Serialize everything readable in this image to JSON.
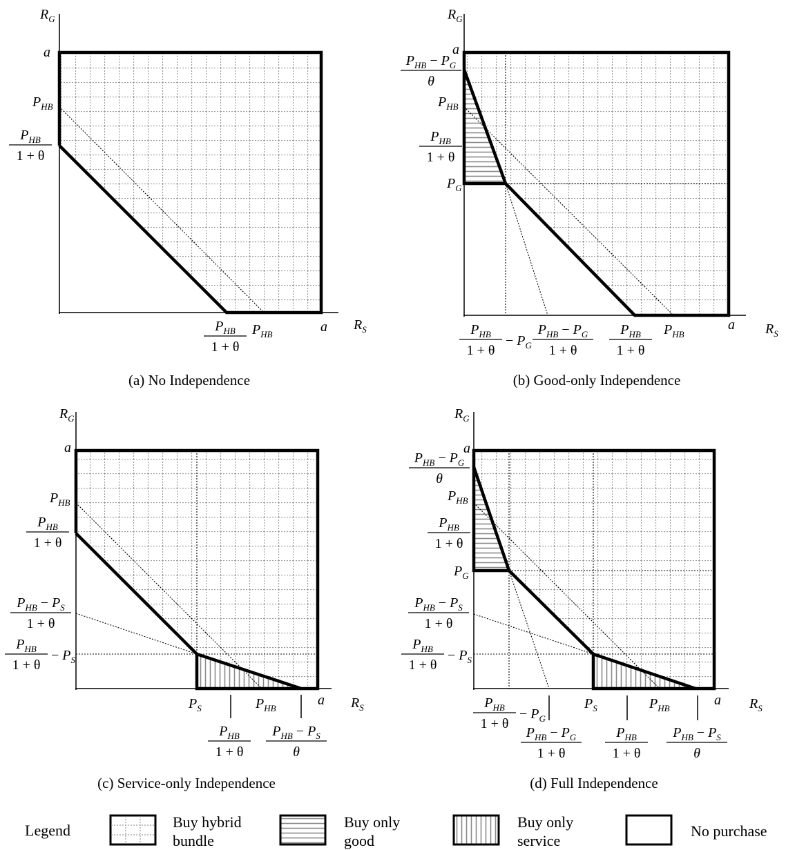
{
  "panels": [
    {
      "caption": "(a) No Independence",
      "axes": {
        "y": "R",
        "y_sub": "G",
        "x": "R",
        "x_sub": "S"
      },
      "labels": {
        "a": "a"
      }
    },
    {
      "caption": "(b) Good-only Independence",
      "axes": {
        "y": "R",
        "y_sub": "G",
        "x": "R",
        "x_sub": "S"
      },
      "labels": {
        "a": "a"
      }
    },
    {
      "caption": "(c) Service-only Independence",
      "axes": {
        "y": "R",
        "y_sub": "G",
        "x": "R",
        "x_sub": "S"
      },
      "labels": {
        "a": "a"
      }
    },
    {
      "caption": "(d) Full Independence",
      "axes": {
        "y": "R",
        "y_sub": "G",
        "x": "R",
        "x_sub": "S"
      },
      "labels": {
        "a": "a"
      }
    }
  ],
  "math": {
    "P": "P",
    "HB": "HB",
    "G": "G",
    "S": "S",
    "one_plus_theta": "1 + θ",
    "theta": "θ",
    "minus": "−"
  },
  "legend": {
    "title": "Legend",
    "items": [
      {
        "line1": "Buy hybrid",
        "line2": "bundle"
      },
      {
        "line1": "Buy only",
        "line2": "good"
      },
      {
        "line1": "Buy only",
        "line2": "service"
      },
      {
        "line1": "No purchase",
        "line2": ""
      }
    ]
  }
}
